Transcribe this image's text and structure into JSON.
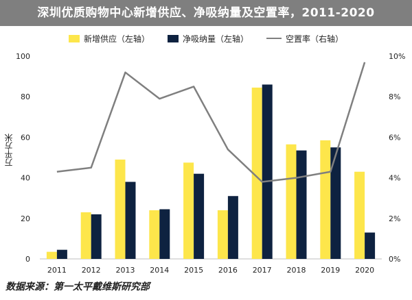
{
  "chart_data": {
    "type": "bar",
    "title": "深圳优质购物中心新增供应、净吸纳量及空置率，2011-2020",
    "ylabel": "万平方米",
    "categories": [
      "2011",
      "2012",
      "2013",
      "2014",
      "2015",
      "2016",
      "2017",
      "2018",
      "2019",
      "2020"
    ],
    "ylim": [
      0,
      100
    ],
    "yticks": [
      "0",
      "20",
      "40",
      "60",
      "80",
      "100"
    ],
    "y2lim": [
      0,
      10
    ],
    "y2ticks": [
      "0%",
      "2%",
      "4%",
      "6%",
      "8%",
      "10%"
    ],
    "series": [
      {
        "name": "新增供应（左轴）",
        "type": "bar",
        "axis": "left",
        "color": "#fde64b",
        "values": [
          3.5,
          23,
          49,
          24,
          47.5,
          24,
          84.5,
          56.5,
          58.5,
          43
        ]
      },
      {
        "name": "净吸纳量（左轴）",
        "type": "bar",
        "axis": "left",
        "color": "#0e2240",
        "values": [
          4.5,
          22,
          38,
          24.5,
          42,
          31,
          86,
          53.5,
          55,
          13
        ]
      },
      {
        "name": "空置率（右轴）",
        "type": "line",
        "axis": "right",
        "color": "#7f7f7f",
        "values": [
          4.3,
          4.5,
          9.2,
          7.9,
          8.5,
          5.4,
          3.8,
          4.0,
          4.3,
          9.7
        ]
      }
    ],
    "grid": false,
    "legend_position": "top"
  },
  "source": "数据来源：第一太平戴维斯研究部"
}
